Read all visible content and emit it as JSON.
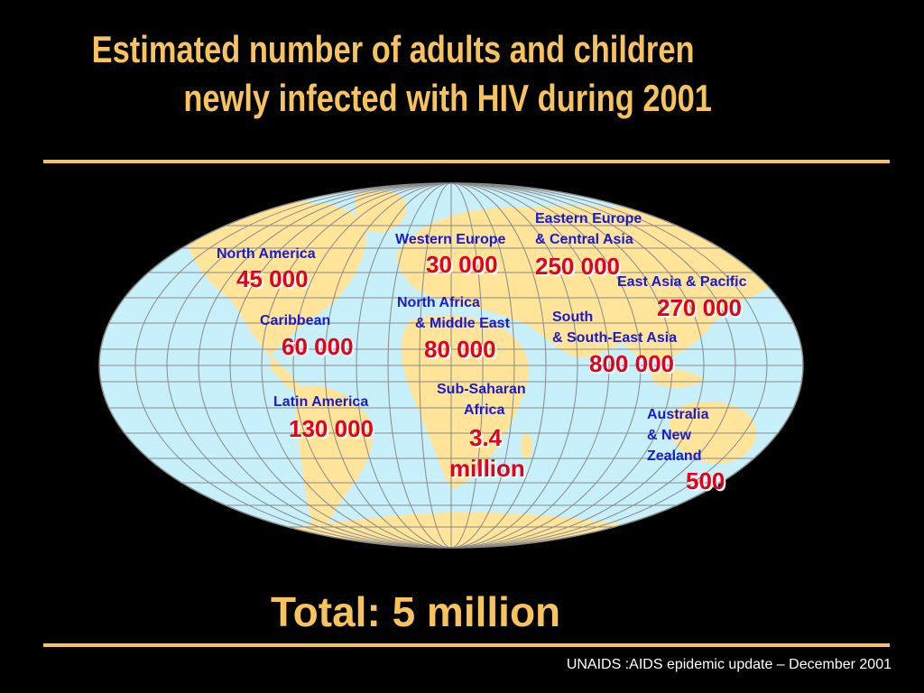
{
  "slide": {
    "title_line1": "Estimated number of adults and children",
    "title_line2": "newly infected with HIV during 2001",
    "total": "Total: 5 million",
    "source": "UNAIDS :AIDS epidemic update – December 2001"
  },
  "regions": {
    "north_america": {
      "label": "North America",
      "value": "45 000"
    },
    "caribbean": {
      "label": "Caribbean",
      "value": "60 000"
    },
    "latin_america": {
      "label": "Latin America",
      "value": "130 000"
    },
    "western_europe": {
      "label": "Western Europe",
      "value": "30 000"
    },
    "north_africa": {
      "label_line1": "North Africa",
      "label_line2": "& Middle East",
      "value": "80 000"
    },
    "sub_saharan": {
      "label_line1": "Sub-Saharan",
      "label_line2": "Africa",
      "value_line1": "3.4",
      "value_line2": "million"
    },
    "eastern_europe": {
      "label_line1": "Eastern Europe",
      "label_line2": "& Central Asia",
      "value": "250 000"
    },
    "east_asia": {
      "label": "East Asia & Pacific",
      "value": "270 000"
    },
    "south_asia": {
      "label_line1": "South",
      "label_line2": "& South-East Asia",
      "value": "800 000"
    },
    "australia": {
      "label_line1": "Australia",
      "label_line2": "& New",
      "label_line3": "Zealand",
      "value": "500"
    }
  },
  "colors": {
    "background": "#000000",
    "title": "#f6c35c",
    "ocean": "#c8f0fa",
    "land": "#ffe49a",
    "label": "#1a1ad1",
    "value": "#e3001b"
  }
}
